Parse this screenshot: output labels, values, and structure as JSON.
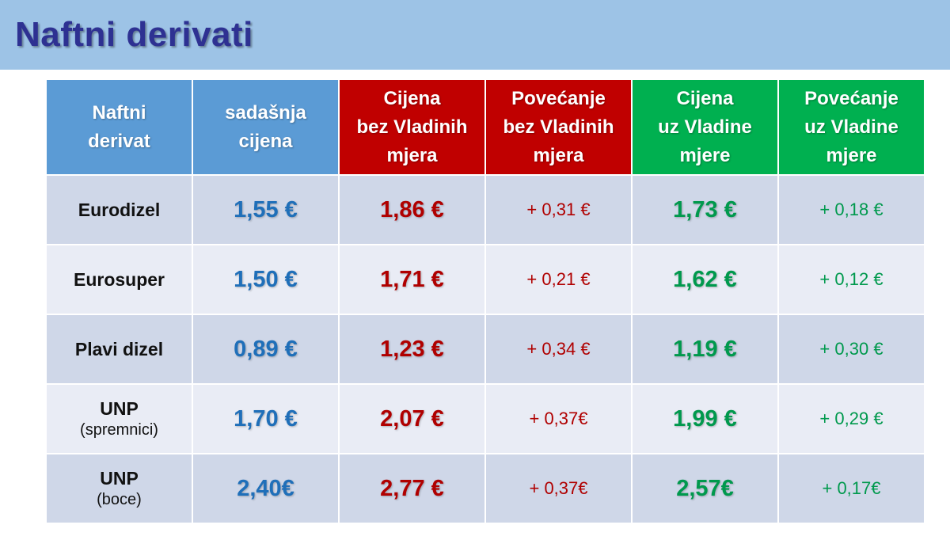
{
  "title": "Naftni derivati",
  "colors": {
    "title_band": "#9dc3e6",
    "title_text": "#2e3192",
    "header_blue": "#5b9bd5",
    "header_red": "#c00000",
    "header_green": "#00b050",
    "value_blue": "#1f6fb9",
    "value_red": "#b00000",
    "value_green": "#00994d"
  },
  "table": {
    "headers": [
      [
        "Naftni",
        "derivat"
      ],
      [
        "sadašnja",
        "cijena"
      ],
      [
        "Cijena",
        "bez Vladinih",
        "mjera"
      ],
      [
        "Povećanje",
        "bez Vladinih",
        "mjera"
      ],
      [
        "Cijena",
        "uz Vladine",
        "mjere"
      ],
      [
        "Povećanje",
        "uz Vladine",
        "mjere"
      ]
    ],
    "rows": [
      {
        "name": "Eurodizel",
        "sub": "",
        "current": "1,55 €",
        "price_without": "1,86 €",
        "increase_without": "+ 0,31 €",
        "price_with": "1,73 €",
        "increase_with": "+ 0,18 €"
      },
      {
        "name": "Eurosuper",
        "sub": "",
        "current": "1,50 €",
        "price_without": "1,71 €",
        "increase_without": "+ 0,21 €",
        "price_with": "1,62 €",
        "increase_with": "+ 0,12 €"
      },
      {
        "name": "Plavi dizel",
        "sub": "",
        "current": "0,89 €",
        "price_without": "1,23 €",
        "increase_without": "+ 0,34 €",
        "price_with": "1,19 €",
        "increase_with": "+ 0,30 €"
      },
      {
        "name": "UNP",
        "sub": "(spremnici)",
        "current": "1,70 €",
        "price_without": "2,07 €",
        "increase_without": "+ 0,37€",
        "price_with": "1,99 €",
        "increase_with": "+ 0,29 €"
      },
      {
        "name": "UNP",
        "sub": "(boce)",
        "current": "2,40€",
        "price_without": "2,77 €",
        "increase_without": "+ 0,37€",
        "price_with": "2,57€",
        "increase_with": "+ 0,17€"
      }
    ]
  }
}
